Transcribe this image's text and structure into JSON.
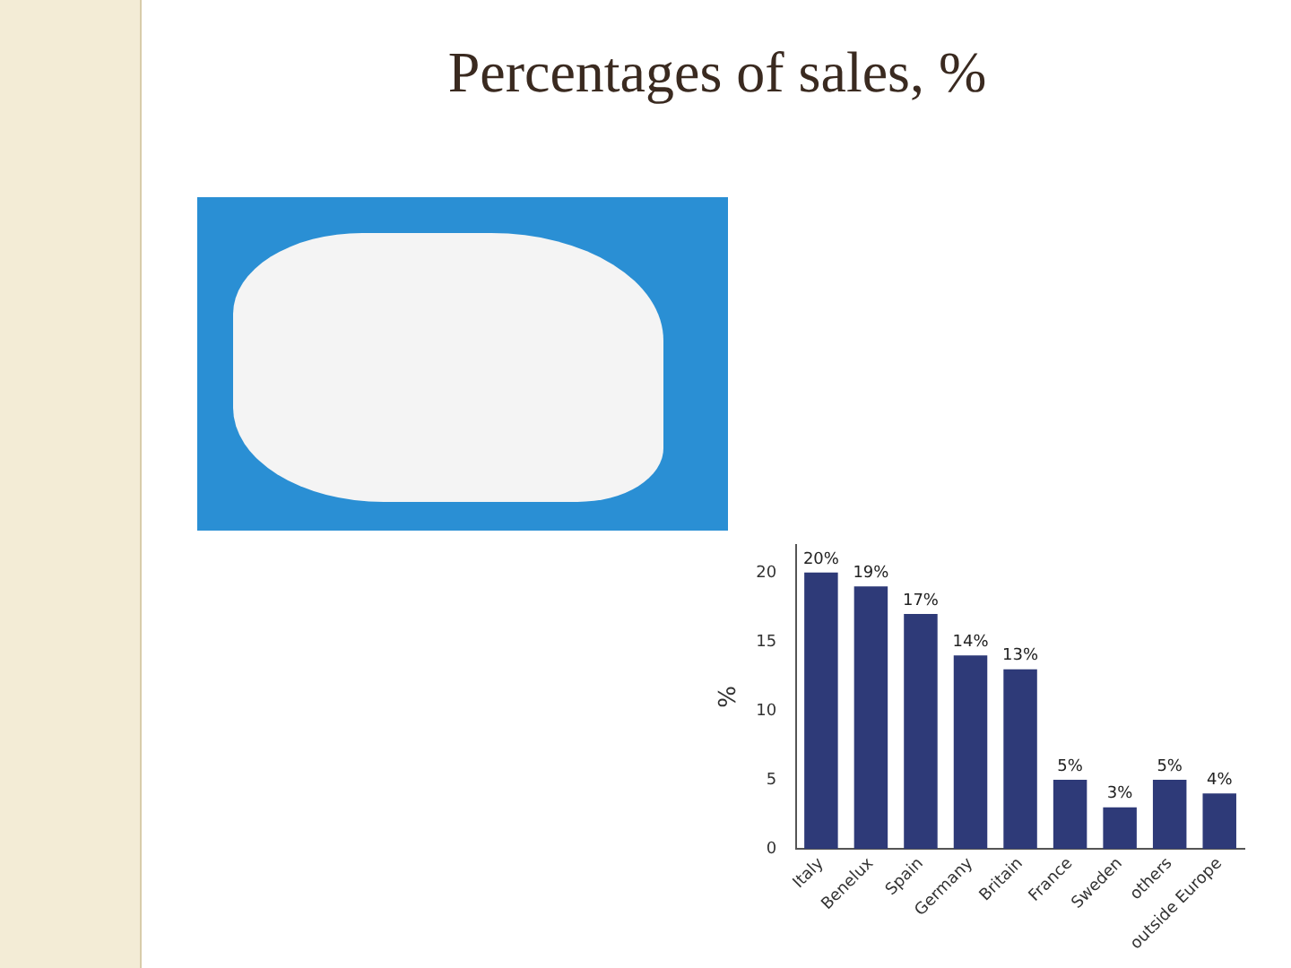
{
  "chart_data": {
    "type": "bar",
    "title": "Percentages of sales, %",
    "ylabel": "%",
    "categories": [
      "Italy",
      "Benelux",
      "Spain",
      "Germany",
      "Britain",
      "France",
      "Sweden",
      "others",
      "outside Europe"
    ],
    "values": [
      20,
      19,
      17,
      14,
      13,
      5,
      3,
      5,
      4
    ],
    "value_labels": [
      "20%",
      "19%",
      "17%",
      "14%",
      "13%",
      "5%",
      "3%",
      "5%",
      "4%"
    ],
    "color": "#2e3a78",
    "ylim": [
      0,
      22
    ],
    "yticks": [
      0,
      5,
      10,
      15,
      20
    ],
    "grid": false,
    "legend": false
  }
}
